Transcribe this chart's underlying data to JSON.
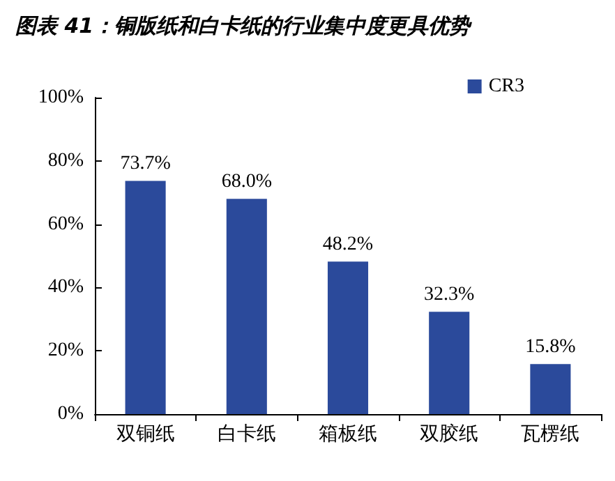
{
  "chart_data": {
    "type": "bar",
    "title": "图表 41：铜版纸和白卡纸的行业集中度更具优势",
    "categories": [
      "双铜纸",
      "白卡纸",
      "箱板纸",
      "双胶纸",
      "瓦楞纸"
    ],
    "series": [
      {
        "name": "CR3",
        "color": "#2b4a9b",
        "values": [
          73.7,
          68.0,
          48.2,
          32.3,
          15.8
        ],
        "value_labels": [
          "73.7%",
          "68.0%",
          "48.2%",
          "32.3%",
          "15.8%"
        ]
      }
    ],
    "ylim": [
      0,
      100
    ],
    "yticks": [
      {
        "value": 0,
        "label": "0%"
      },
      {
        "value": 20,
        "label": "20%"
      },
      {
        "value": 40,
        "label": "40%"
      },
      {
        "value": 60,
        "label": "60%"
      },
      {
        "value": 80,
        "label": "80%"
      },
      {
        "value": 100,
        "label": "100%"
      }
    ],
    "grid": false,
    "legend": "top right"
  }
}
